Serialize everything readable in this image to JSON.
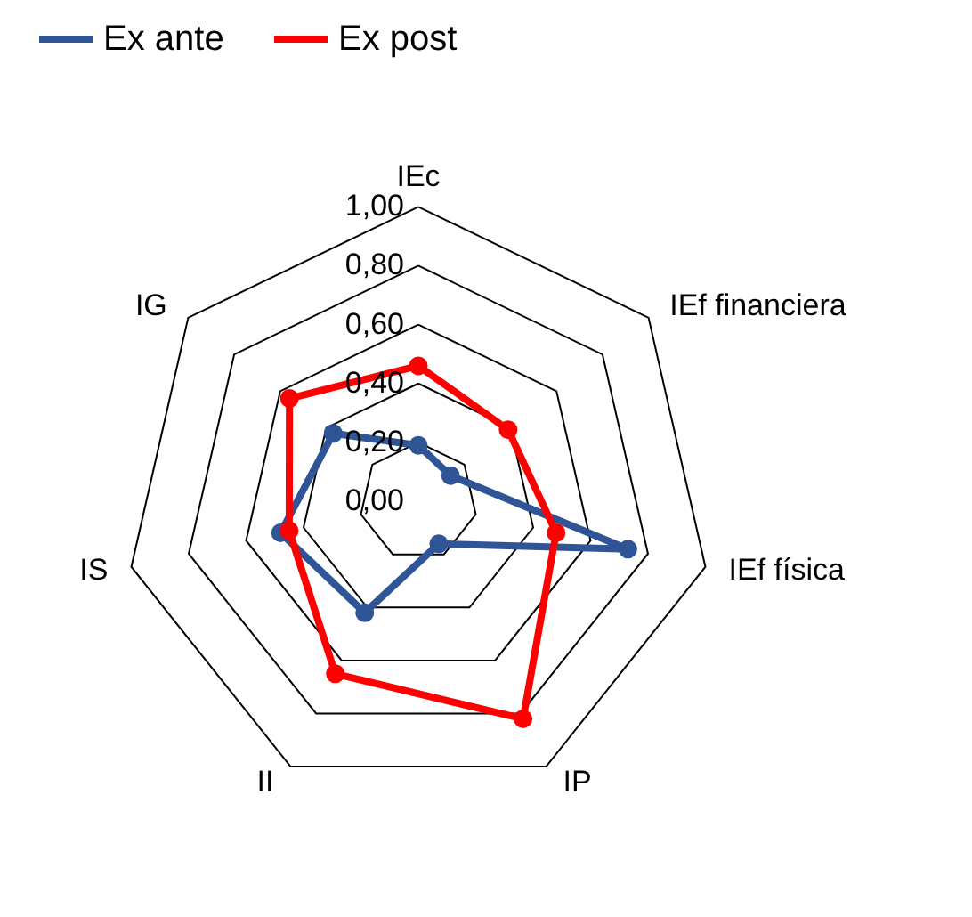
{
  "chart_data": {
    "type": "radar",
    "categories": [
      "IEc",
      "IEf financiera",
      "IEf física",
      "IP",
      "II",
      "IS",
      "IG"
    ],
    "series": [
      {
        "name": "Ex ante",
        "color": "#2f5597",
        "values": [
          0.19,
          0.14,
          0.73,
          0.16,
          0.42,
          0.48,
          0.37
        ]
      },
      {
        "name": "Ex post",
        "color": "#ff0000",
        "values": [
          0.46,
          0.39,
          0.48,
          0.82,
          0.65,
          0.45,
          0.56
        ]
      }
    ],
    "ylim": [
      0,
      1
    ],
    "yticks": [
      {
        "value": 0,
        "label": "0,00"
      },
      {
        "value": 0.2,
        "label": "0,20"
      },
      {
        "value": 0.4,
        "label": "0,40"
      },
      {
        "value": 0.6,
        "label": "0,60"
      },
      {
        "value": 0.8,
        "label": "0,80"
      },
      {
        "value": 1,
        "label": "1,00"
      }
    ],
    "grid": true,
    "legend": "top",
    "marker": "circle"
  }
}
